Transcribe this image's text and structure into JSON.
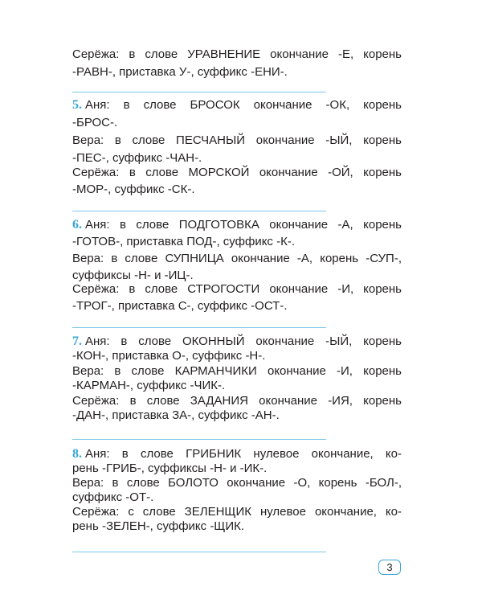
{
  "paragraphs": [
    {
      "number": "",
      "lines": [
        "Серёжа: в слове УРАВНЕНИЕ окончание -Е, корень",
        "-РАВН-, приставка У-, суффикс -ЕНИ-."
      ]
    },
    {
      "number": "5.",
      "lines": [
        "Аня: в слове БРОСОК окончание -ОК, корень",
        "-БРОС-."
      ]
    },
    {
      "number": "",
      "lines": [
        "Вера: в слове ПЕСЧАНЫЙ окончание -ЫЙ, корень",
        "-ПЕС-, суффикс -ЧАН-."
      ]
    },
    {
      "number": "",
      "lines": [
        "Серёжа: в слове МОРСКОЙ окончание -ОЙ, корень",
        "-МОР-, суффикс -СК-."
      ]
    },
    {
      "number": "6.",
      "lines": [
        "Аня: в слове ПОДГОТОВКА окончание -А, корень",
        "-ГОТОВ-, приставка ПОД-, суффикс -К-."
      ]
    },
    {
      "number": "",
      "lines": [
        "Вера: в слове СУПНИЦА окончание -А, корень -СУП-,",
        "суффиксы -Н- и -ИЦ-."
      ]
    },
    {
      "number": "",
      "lines": [
        "Серёжа: в слове СТРОГОСТИ окончание -И, корень",
        "-ТРОГ-, приставка С-, суффикс -ОСТ-."
      ]
    },
    {
      "number": "7.",
      "lines": [
        "Аня: в слове ОКОННЫЙ окончание -ЫЙ, корень",
        "-КОН-, приставка О-, суффикс -Н-."
      ]
    },
    {
      "number": "",
      "lines": [
        "Вера: в слове КАРМАНЧИКИ окончание -И, корень",
        "-КАРМАН-, суффикс -ЧИК-."
      ]
    },
    {
      "number": "",
      "lines": [
        "Серёжа: в слове ЗАДАНИЯ окончание -ИЯ, корень",
        "-ДАН-, приставка ЗА-, суффикс -АН-."
      ]
    },
    {
      "number": "8.",
      "lines": [
        "Аня: в слове ГРИБНИК нулевое окончание, ко-",
        "рень -ГРИБ-, суффиксы -Н- и -ИК-."
      ]
    },
    {
      "number": "",
      "lines": [
        "Вера: в слове БОЛОТО окончание -О, корень -БОЛ-,",
        "суффикс -ОТ-."
      ]
    },
    {
      "number": "",
      "lines": [
        "Серёжа: с слове ЗЕЛЕНЩИК нулевое окончание, ко-",
        "рень -ЗЕЛЕН-, суффикс -ЩИК."
      ]
    }
  ],
  "page_number": "3",
  "colors": {
    "accent": "#3aa6d8",
    "rule": "#7cc8ec",
    "text": "#231f20"
  }
}
